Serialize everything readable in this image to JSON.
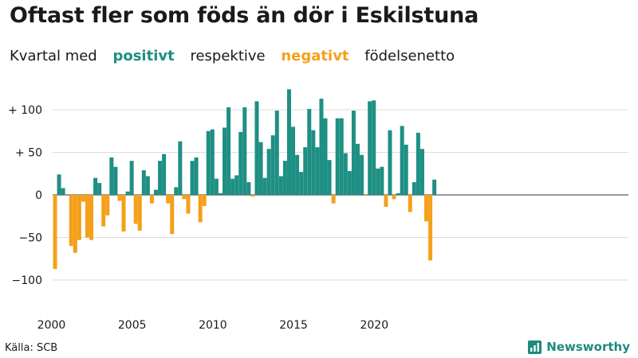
{
  "title": "Oftast fler som föds än dör i Eskilstuna",
  "subtitle": {
    "prefix": "Kvartal med",
    "positive": "positivt",
    "middle": "respektive",
    "negative": "negativt",
    "suffix": "födelsenetto"
  },
  "source": "Källa: SCB",
  "brand": "Newsworthy",
  "colors": {
    "positive": "#1e8f83",
    "negative": "#f5a01a",
    "text": "#1a1a1a",
    "grid": "#dddddd"
  },
  "chart_data": {
    "type": "bar",
    "title": "Oftast fler som föds än dör i Eskilstuna",
    "xlabel": "",
    "ylabel": "",
    "ylim": [
      -100,
      120
    ],
    "yticks": [
      100,
      50,
      0,
      -50,
      -100
    ],
    "ytick_labels": [
      "+ 100",
      "+  50",
      "0",
      "−50",
      "−100"
    ],
    "xticks": [
      "2000",
      "2005",
      "2010",
      "2015",
      "2020"
    ],
    "x_start": "2000 Q1",
    "x_frequency": "quarter",
    "grid": true,
    "categories": [
      "2000 Q1",
      "2000 Q2",
      "2000 Q3",
      "2000 Q4",
      "2001 Q1",
      "2001 Q2",
      "2001 Q3",
      "2001 Q4",
      "2002 Q1",
      "2002 Q2",
      "2002 Q3",
      "2002 Q4",
      "2003 Q1",
      "2003 Q2",
      "2003 Q3",
      "2003 Q4",
      "2004 Q1",
      "2004 Q2",
      "2004 Q3",
      "2004 Q4",
      "2005 Q1",
      "2005 Q2",
      "2005 Q3",
      "2005 Q4",
      "2006 Q1",
      "2006 Q2",
      "2006 Q3",
      "2006 Q4",
      "2007 Q1",
      "2007 Q2",
      "2007 Q3",
      "2007 Q4",
      "2008 Q1",
      "2008 Q2",
      "2008 Q3",
      "2008 Q4",
      "2009 Q1",
      "2009 Q2",
      "2009 Q3",
      "2009 Q4",
      "2010 Q1",
      "2010 Q2",
      "2010 Q3",
      "2010 Q4",
      "2011 Q1",
      "2011 Q2",
      "2011 Q3",
      "2011 Q4",
      "2012 Q1",
      "2012 Q2",
      "2012 Q3",
      "2012 Q4",
      "2013 Q1",
      "2013 Q2",
      "2013 Q3",
      "2013 Q4",
      "2014 Q1",
      "2014 Q2",
      "2014 Q3",
      "2014 Q4",
      "2015 Q1",
      "2015 Q2",
      "2015 Q3",
      "2015 Q4",
      "2016 Q1",
      "2016 Q2",
      "2016 Q3",
      "2016 Q4",
      "2017 Q1",
      "2017 Q2",
      "2017 Q3",
      "2017 Q4",
      "2018 Q1",
      "2018 Q2",
      "2018 Q3",
      "2018 Q4",
      "2019 Q1",
      "2019 Q2",
      "2019 Q3",
      "2019 Q4",
      "2020 Q1",
      "2020 Q2",
      "2020 Q3",
      "2020 Q4",
      "2021 Q1",
      "2021 Q2",
      "2021 Q3",
      "2021 Q4",
      "2022 Q1",
      "2022 Q2",
      "2022 Q3",
      "2022 Q4",
      "2023 Q1",
      "2023 Q2",
      "2023 Q3",
      "2023 Q4"
    ],
    "values": [
      -87,
      24,
      8,
      0,
      -60,
      -68,
      -53,
      -8,
      -50,
      -53,
      20,
      14,
      -37,
      -24,
      44,
      33,
      -7,
      -43,
      4,
      40,
      -34,
      -42,
      29,
      22,
      -10,
      6,
      40,
      48,
      -10,
      -46,
      9,
      63,
      -5,
      -22,
      40,
      44,
      -32,
      -13,
      75,
      77,
      19,
      2,
      79,
      103,
      19,
      23,
      74,
      103,
      15,
      -2,
      110,
      62,
      20,
      54,
      70,
      99,
      22,
      40,
      124,
      80,
      47,
      27,
      56,
      101,
      76,
      56,
      113,
      90,
      41,
      -10,
      90,
      90,
      49,
      28,
      99,
      60,
      47,
      -1,
      110,
      111,
      31,
      33,
      -14,
      76,
      -5,
      2,
      81,
      59,
      -20,
      15,
      73,
      54,
      -31,
      -77,
      18,
      0
    ]
  }
}
